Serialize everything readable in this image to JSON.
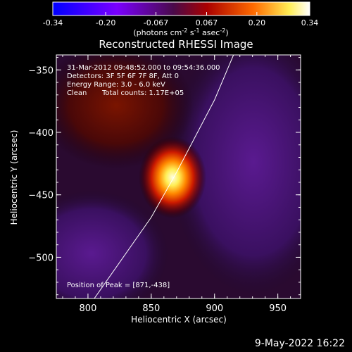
{
  "colorbar": {
    "tick_labels": [
      "-0.34",
      "-0.20",
      "-0.067",
      "0.067",
      "0.20",
      "0.34"
    ],
    "tick_values": [
      -0.34,
      -0.2,
      -0.067,
      0.067,
      0.2,
      0.34
    ],
    "range": [
      -0.34,
      0.34
    ],
    "units_prefix": "(photons cm",
    "units_exp1": "-2",
    "units_mid": " s",
    "units_exp2": "-1",
    "units_mid2": " asec",
    "units_exp3": "-2",
    "units_suffix": ")",
    "colors": [
      "#0000ff",
      "#7700ff",
      "#5a0a64",
      "#8a0000",
      "#ff5500",
      "#ffff88",
      "#ffffff"
    ]
  },
  "chart_data": {
    "type": "heatmap",
    "title": "Reconstructed RHESSI Image",
    "xlabel": "Heliocentric X (arcsec)",
    "ylabel": "Heliocentric Y (arcsec)",
    "xlim": [
      775,
      968
    ],
    "ylim": [
      -533,
      -338
    ],
    "x_ticks": [
      800,
      850,
      900,
      950
    ],
    "y_ticks": [
      -350,
      -400,
      -450,
      -500
    ],
    "x_tick_labels": [
      "800",
      "850",
      "900",
      "950"
    ],
    "y_tick_labels": [
      "−350",
      "−400",
      "−450",
      "−500"
    ],
    "peak": [
      871,
      -438
    ],
    "limb": [
      [
        805,
        -533
      ],
      [
        850,
        -468
      ],
      [
        870,
        -432
      ],
      [
        900,
        -374
      ],
      [
        915,
        -338
      ]
    ],
    "annotations": [
      "31-Mar-2012 09:48:52.000 to 09:54:36.000",
      "Detectors: 3F 5F 6F 7F 8F, Att 0",
      "Energy Range: 3.0 - 6.0 keV",
      "Clean",
      "Total counts: 1.17E+05"
    ],
    "peak_label": "Position of Peak = [871,-438]"
  },
  "footer_date": "9-May-2022 16:22"
}
